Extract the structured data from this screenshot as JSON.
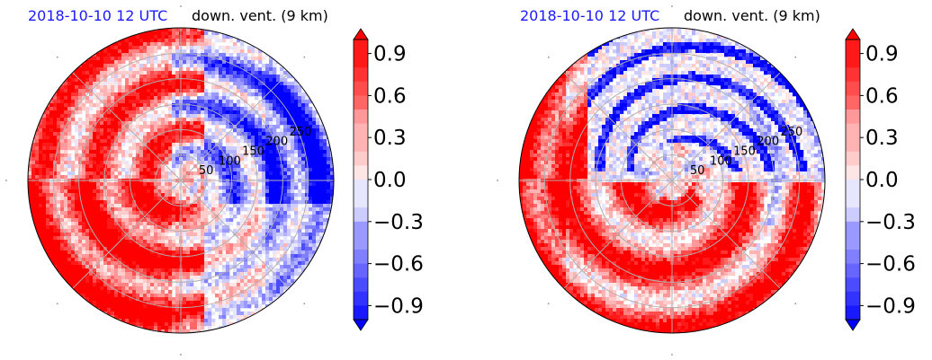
{
  "panels": [
    {
      "datetime": "2018-10-10 12 UTC",
      "title": "down. vent. (9 km)",
      "pattern": "left"
    },
    {
      "datetime": "2018-10-10 12 UTC",
      "title": "down. vent. (9 km)",
      "pattern": "right"
    }
  ],
  "chart_data": [
    {
      "type": "heatmap",
      "projection": "polar",
      "radial_ticks": [
        "50",
        "100",
        "150",
        "200",
        "250"
      ],
      "radial_tick_values": [
        50,
        100,
        150,
        200,
        250
      ],
      "rmax": 300,
      "colorbar": {
        "ticks": [
          "0.9",
          "0.6",
          "0.3",
          "0.0",
          "−0.3",
          "−0.6",
          "−0.9"
        ],
        "tick_values": [
          0.9,
          0.6,
          0.3,
          0.0,
          -0.3,
          -0.6,
          -0.9
        ],
        "range": [
          -1.0,
          1.0
        ],
        "colormap": "bwr",
        "colors": {
          "low": "#0000ff",
          "mid": "#ffffff",
          "high": "#ff0000"
        }
      }
    },
    {
      "type": "heatmap",
      "projection": "polar",
      "radial_ticks": [
        "50",
        "100",
        "150",
        "200",
        "250"
      ],
      "radial_tick_values": [
        50,
        100,
        150,
        200,
        250
      ],
      "rmax": 300,
      "colorbar": {
        "ticks": [
          "0.9",
          "0.6",
          "0.3",
          "0.0",
          "−0.3",
          "−0.6",
          "−0.9"
        ],
        "tick_values": [
          0.9,
          0.6,
          0.3,
          0.0,
          -0.3,
          -0.6,
          -0.9
        ],
        "range": [
          -1.0,
          1.0
        ],
        "colormap": "bwr",
        "colors": {
          "low": "#0000ff",
          "mid": "#ffffff",
          "high": "#ff0000"
        }
      }
    }
  ]
}
